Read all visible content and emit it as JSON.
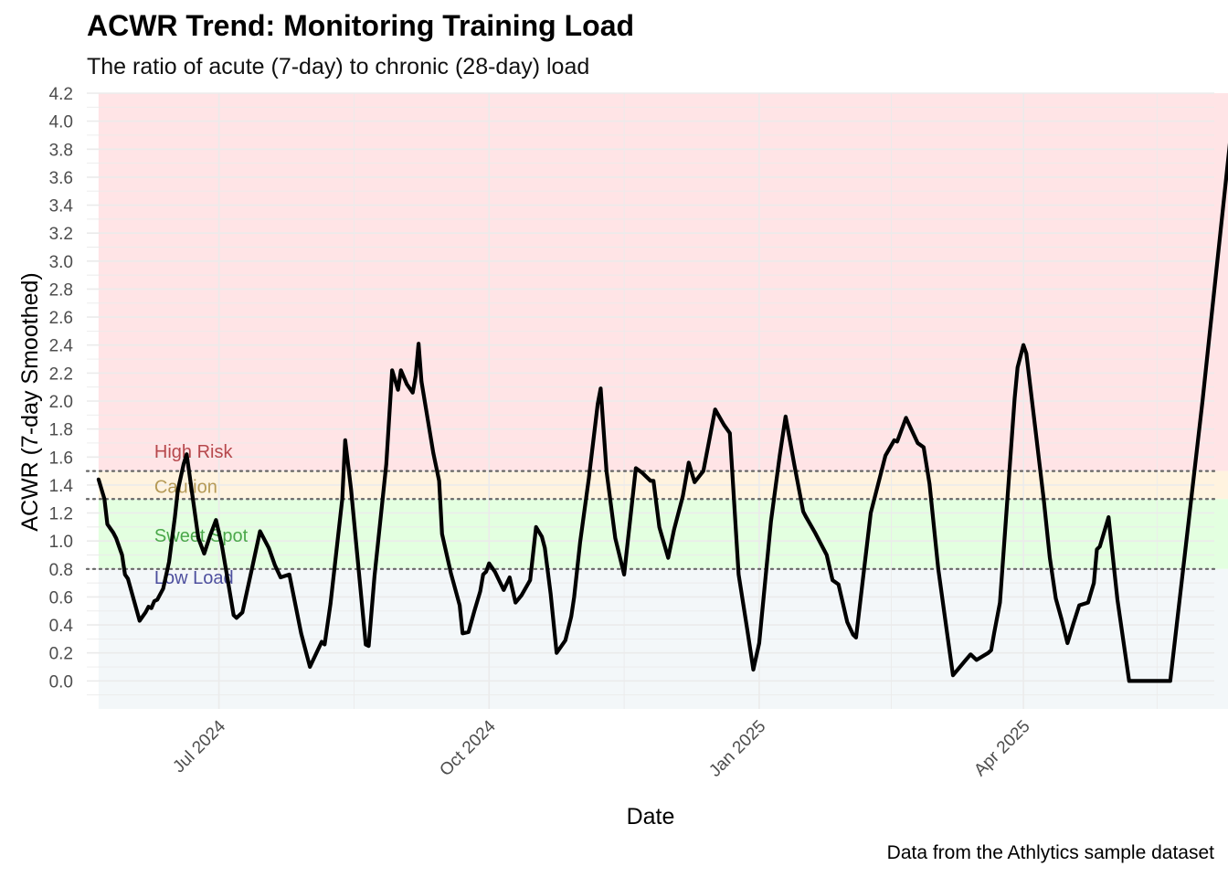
{
  "title": "ACWR Trend: Monitoring Training Load",
  "subtitle": "The ratio of acute (7-day) to chronic (28-day) load",
  "caption": "Data from the Athlytics sample dataset",
  "colors": {
    "high_risk_band": "#ffe4e6",
    "caution_band": "#fff3df",
    "sweet_spot_band": "#e3ffe0",
    "low_load_band": "#f3f7f9",
    "high_risk_label": "#b5484c",
    "caution_label": "#b59a57",
    "sweet_spot_label": "#4aa84a",
    "low_load_label": "#4d4f9e",
    "line": "#000000",
    "threshold": "#666666",
    "grid": "#ebebeb"
  },
  "chart_data": {
    "type": "line",
    "xlabel": "Date",
    "ylabel": "ACWR (7-day Smoothed)",
    "xlim": [
      "2024-05-17",
      "2025-06-05"
    ],
    "ylim": [
      -0.2,
      4.2
    ],
    "y_ticks": [
      "0.0",
      "0.2",
      "0.4",
      "0.6",
      "0.8",
      "1.0",
      "1.2",
      "1.4",
      "1.6",
      "1.8",
      "2.0",
      "2.2",
      "2.4",
      "2.6",
      "2.8",
      "3.0",
      "3.2",
      "3.4",
      "3.6",
      "3.8",
      "4.0",
      "4.2"
    ],
    "x_ticks": [
      {
        "date": "2024-07-01",
        "label": "Jul 2024"
      },
      {
        "date": "2024-10-01",
        "label": "Oct 2024"
      },
      {
        "date": "2025-01-01",
        "label": "Jan 2025"
      },
      {
        "date": "2025-04-01",
        "label": "Apr 2025"
      }
    ],
    "grid": true,
    "zones": [
      {
        "label": "High Risk",
        "from": 1.5,
        "to": 4.2
      },
      {
        "label": "Caution",
        "from": 1.3,
        "to": 1.5
      },
      {
        "label": "Sweet Spot",
        "from": 0.8,
        "to": 1.3
      },
      {
        "label": "Low Load",
        "from": -0.2,
        "to": 0.8
      }
    ],
    "thresholds": [
      0.8,
      1.3,
      1.5
    ],
    "series": [
      {
        "values": [
          [
            "2024-05-21",
            1.44
          ],
          [
            "2024-05-23",
            1.3
          ],
          [
            "2024-05-24",
            1.12
          ],
          [
            "2024-05-26",
            1.06
          ],
          [
            "2024-05-27",
            1.02
          ],
          [
            "2024-05-29",
            0.9
          ],
          [
            "2024-05-30",
            0.76
          ],
          [
            "2024-05-31",
            0.73
          ],
          [
            "2024-06-02",
            0.58
          ],
          [
            "2024-06-04",
            0.43
          ],
          [
            "2024-06-06",
            0.49
          ],
          [
            "2024-06-07",
            0.53
          ],
          [
            "2024-06-08",
            0.52
          ],
          [
            "2024-06-09",
            0.57
          ],
          [
            "2024-06-10",
            0.58
          ],
          [
            "2024-06-12",
            0.66
          ],
          [
            "2024-06-14",
            0.85
          ],
          [
            "2024-06-16",
            1.17
          ],
          [
            "2024-06-17",
            1.36
          ],
          [
            "2024-06-19",
            1.55
          ],
          [
            "2024-06-20",
            1.62
          ],
          [
            "2024-06-21",
            1.47
          ],
          [
            "2024-06-23",
            1.17
          ],
          [
            "2024-06-24",
            1.02
          ],
          [
            "2024-06-26",
            0.91
          ],
          [
            "2024-06-28",
            1.04
          ],
          [
            "2024-06-30",
            1.15
          ],
          [
            "2024-07-02",
            0.97
          ],
          [
            "2024-07-04",
            0.72
          ],
          [
            "2024-07-06",
            0.47
          ],
          [
            "2024-07-07",
            0.45
          ],
          [
            "2024-07-09",
            0.49
          ],
          [
            "2024-07-12",
            0.78
          ],
          [
            "2024-07-15",
            1.07
          ],
          [
            "2024-07-18",
            0.95
          ],
          [
            "2024-07-20",
            0.83
          ],
          [
            "2024-07-22",
            0.74
          ],
          [
            "2024-07-25",
            0.76
          ],
          [
            "2024-07-29",
            0.34
          ],
          [
            "2024-08-01",
            0.1
          ],
          [
            "2024-08-05",
            0.28
          ],
          [
            "2024-08-06",
            0.26
          ],
          [
            "2024-08-08",
            0.55
          ],
          [
            "2024-08-12",
            1.3
          ],
          [
            "2024-08-13",
            1.72
          ],
          [
            "2024-08-15",
            1.37
          ],
          [
            "2024-08-20",
            0.26
          ],
          [
            "2024-08-21",
            0.25
          ],
          [
            "2024-08-23",
            0.75
          ],
          [
            "2024-08-27",
            1.55
          ],
          [
            "2024-08-29",
            2.22
          ],
          [
            "2024-08-31",
            2.08
          ],
          [
            "2024-09-01",
            2.22
          ],
          [
            "2024-09-03",
            2.12
          ],
          [
            "2024-09-05",
            2.06
          ],
          [
            "2024-09-06",
            2.18
          ],
          [
            "2024-09-07",
            2.41
          ],
          [
            "2024-09-08",
            2.14
          ],
          [
            "2024-09-12",
            1.63
          ],
          [
            "2024-09-14",
            1.43
          ],
          [
            "2024-09-15",
            1.05
          ],
          [
            "2024-09-18",
            0.77
          ],
          [
            "2024-09-21",
            0.54
          ],
          [
            "2024-09-22",
            0.34
          ],
          [
            "2024-09-24",
            0.35
          ],
          [
            "2024-09-26",
            0.5
          ],
          [
            "2024-09-28",
            0.64
          ],
          [
            "2024-09-29",
            0.76
          ],
          [
            "2024-09-30",
            0.78
          ],
          [
            "2024-10-01",
            0.84
          ],
          [
            "2024-10-03",
            0.78
          ],
          [
            "2024-10-06",
            0.65
          ],
          [
            "2024-10-08",
            0.74
          ],
          [
            "2024-10-10",
            0.56
          ],
          [
            "2024-10-12",
            0.61
          ],
          [
            "2024-10-15",
            0.72
          ],
          [
            "2024-10-17",
            1.1
          ],
          [
            "2024-10-19",
            1.03
          ],
          [
            "2024-10-20",
            0.95
          ],
          [
            "2024-10-22",
            0.62
          ],
          [
            "2024-10-24",
            0.2
          ],
          [
            "2024-10-27",
            0.29
          ],
          [
            "2024-10-29",
            0.46
          ],
          [
            "2024-10-30",
            0.6
          ],
          [
            "2024-11-01",
            0.99
          ],
          [
            "2024-11-04",
            1.45
          ],
          [
            "2024-11-07",
            1.98
          ],
          [
            "2024-11-08",
            2.09
          ],
          [
            "2024-11-10",
            1.5
          ],
          [
            "2024-11-13",
            1.02
          ],
          [
            "2024-11-16",
            0.76
          ],
          [
            "2024-11-20",
            1.52
          ],
          [
            "2024-11-22",
            1.49
          ],
          [
            "2024-11-25",
            1.43
          ],
          [
            "2024-11-26",
            1.43
          ],
          [
            "2024-11-28",
            1.1
          ],
          [
            "2024-12-01",
            0.88
          ],
          [
            "2024-12-03",
            1.08
          ],
          [
            "2024-12-06",
            1.32
          ],
          [
            "2024-12-08",
            1.56
          ],
          [
            "2024-12-10",
            1.42
          ],
          [
            "2024-12-13",
            1.5
          ],
          [
            "2024-12-17",
            1.94
          ],
          [
            "2024-12-20",
            1.83
          ],
          [
            "2024-12-22",
            1.77
          ],
          [
            "2024-12-25",
            0.76
          ],
          [
            "2024-12-28",
            0.36
          ],
          [
            "2024-12-30",
            0.08
          ],
          [
            "2025-01-01",
            0.27
          ],
          [
            "2025-01-05",
            1.14
          ],
          [
            "2025-01-08",
            1.61
          ],
          [
            "2025-01-10",
            1.89
          ],
          [
            "2025-01-13",
            1.54
          ],
          [
            "2025-01-16",
            1.21
          ],
          [
            "2025-01-17",
            1.17
          ],
          [
            "2025-01-20",
            1.06
          ],
          [
            "2025-01-24",
            0.9
          ],
          [
            "2025-01-26",
            0.72
          ],
          [
            "2025-01-28",
            0.69
          ],
          [
            "2025-01-31",
            0.42
          ],
          [
            "2025-02-02",
            0.33
          ],
          [
            "2025-02-03",
            0.31
          ],
          [
            "2025-02-05",
            0.67
          ],
          [
            "2025-02-08",
            1.2
          ],
          [
            "2025-02-13",
            1.61
          ],
          [
            "2025-02-16",
            1.72
          ],
          [
            "2025-02-17",
            1.71
          ],
          [
            "2025-02-20",
            1.88
          ],
          [
            "2025-02-24",
            1.7
          ],
          [
            "2025-02-26",
            1.67
          ],
          [
            "2025-02-28",
            1.41
          ],
          [
            "2025-03-03",
            0.8
          ],
          [
            "2025-03-06",
            0.34
          ],
          [
            "2025-03-08",
            0.04
          ],
          [
            "2025-03-12",
            0.14
          ],
          [
            "2025-03-14",
            0.19
          ],
          [
            "2025-03-16",
            0.15
          ],
          [
            "2025-03-20",
            0.2
          ],
          [
            "2025-03-21",
            0.22
          ],
          [
            "2025-03-22",
            0.34
          ],
          [
            "2025-03-24",
            0.56
          ],
          [
            "2025-03-26",
            1.14
          ],
          [
            "2025-03-29",
            2.02
          ],
          [
            "2025-03-30",
            2.24
          ],
          [
            "2025-04-01",
            2.4
          ],
          [
            "2025-04-02",
            2.34
          ],
          [
            "2025-04-05",
            1.81
          ],
          [
            "2025-04-08",
            1.28
          ],
          [
            "2025-04-10",
            0.88
          ],
          [
            "2025-04-12",
            0.59
          ],
          [
            "2025-04-14",
            0.44
          ],
          [
            "2025-04-16",
            0.27
          ],
          [
            "2025-04-18",
            0.41
          ],
          [
            "2025-04-20",
            0.54
          ],
          [
            "2025-04-23",
            0.56
          ],
          [
            "2025-04-25",
            0.7
          ],
          [
            "2025-04-26",
            0.94
          ],
          [
            "2025-04-27",
            0.96
          ],
          [
            "2025-04-30",
            1.17
          ],
          [
            "2025-05-03",
            0.58
          ],
          [
            "2025-05-07",
            0.0
          ],
          [
            "2025-05-21",
            0.0
          ],
          [
            "2025-06-01",
            2.0
          ],
          [
            "2025-06-11",
            3.98
          ]
        ]
      }
    ]
  }
}
